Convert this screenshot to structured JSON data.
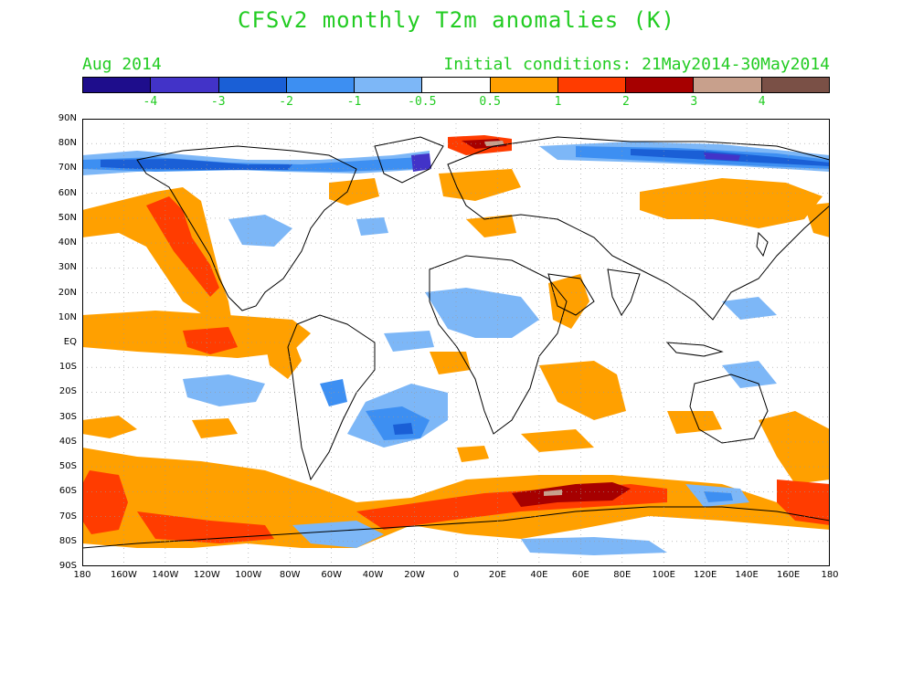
{
  "title": "CFSv2 monthly T2m anomalies (K)",
  "subtitle_left": "Aug 2014",
  "subtitle_right": "Initial conditions: 21May2014-30May2014",
  "colorbar": {
    "colors": [
      "#1e0d8c",
      "#4233c8",
      "#1a5fd6",
      "#3d8ff2",
      "#7db7f7",
      "#ffffff",
      "#ffa000",
      "#ff3c00",
      "#a60000",
      "#c8a08c",
      "#7a5046"
    ],
    "labels": [
      "-4",
      "-3",
      "-2",
      "-1",
      "-0.5",
      "0.5",
      "1",
      "2",
      "3",
      "4"
    ]
  },
  "axes": {
    "lat_labels": [
      "90N",
      "80N",
      "70N",
      "60N",
      "50N",
      "40N",
      "30N",
      "20N",
      "10N",
      "EQ",
      "10S",
      "20S",
      "30S",
      "40S",
      "50S",
      "60S",
      "70S",
      "80S",
      "90S"
    ],
    "lon_labels": [
      "180",
      "160W",
      "140W",
      "120W",
      "100W",
      "80W",
      "60W",
      "40W",
      "20W",
      "0",
      "20E",
      "40E",
      "60E",
      "80E",
      "100E",
      "120E",
      "140E",
      "160E",
      "180"
    ]
  },
  "legend_colors": {
    "warm_light": "#ffa000",
    "warm_mid": "#ff3c00",
    "warm_dark": "#a60000",
    "warm_pink": "#c8a08c",
    "cold_light": "#7db7f7",
    "cold_mid": "#3d8ff2",
    "cold_dark": "#1a5fd6",
    "cold_darker": "#4233c8",
    "cold_darkest": "#1e0d8c"
  }
}
